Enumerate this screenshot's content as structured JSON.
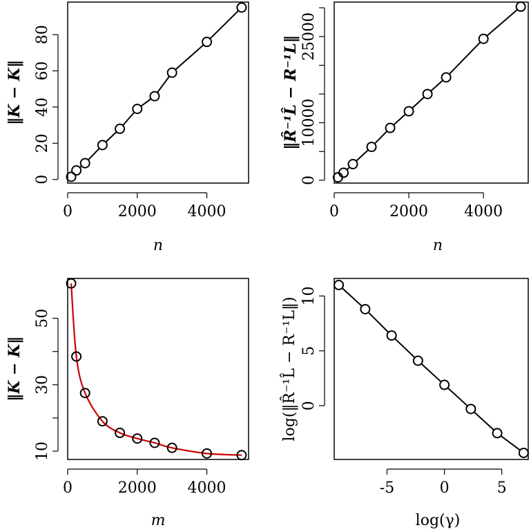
{
  "chart_data": [
    {
      "id": "top-left",
      "type": "line",
      "xlabel": "n",
      "ylabel": "‖K − K‖",
      "x": [
        100,
        250,
        500,
        1000,
        1500,
        2000,
        2500,
        3000,
        4000,
        5000
      ],
      "series": [
        {
          "values": [
            1.5,
            5,
            9,
            19,
            28,
            39,
            46,
            59,
            76,
            95
          ],
          "color": "#000000"
        }
      ],
      "xlim": [
        0,
        5200
      ],
      "ylim": [
        -2,
        98
      ],
      "xticks": [
        0,
        2000,
        4000
      ],
      "xtick_labels": [
        "0",
        "2000",
        "4000"
      ],
      "yticks": [
        0,
        20,
        40,
        60,
        80
      ],
      "ytick_labels": [
        "0",
        "20",
        "40",
        "60",
        "80"
      ],
      "marker": "circle",
      "grid": false
    },
    {
      "id": "top-right",
      "type": "line",
      "xlabel": "n",
      "ylabel": "‖R̂⁻¹L̂ − R⁻¹L‖",
      "x": [
        100,
        250,
        500,
        1000,
        1500,
        2000,
        2500,
        3000,
        4000,
        5000
      ],
      "series": [
        {
          "values": [
            500,
            1300,
            2800,
            5800,
            9100,
            12000,
            15000,
            17900,
            24600,
            30200
          ],
          "color": "#000000"
        }
      ],
      "xlim": [
        0,
        5200
      ],
      "ylim": [
        -500,
        31000
      ],
      "xticks": [
        0,
        2000,
        4000
      ],
      "xtick_labels": [
        "0",
        "2000",
        "4000"
      ],
      "yticks": [
        0,
        10000,
        25000
      ],
      "ytick_labels": [
        "0",
        "10000",
        "25000"
      ],
      "yticks_minor": [
        5000,
        15000,
        20000,
        30000
      ],
      "marker": "circle",
      "grid": false
    },
    {
      "id": "bottom-left",
      "type": "line",
      "xlabel": "m",
      "ylabel": "‖K − K‖",
      "x": [
        100,
        250,
        500,
        1000,
        1500,
        2000,
        2500,
        3000,
        4000,
        5000
      ],
      "series": [
        {
          "values": [
            60.5,
            38.5,
            27.5,
            19,
            15.5,
            13.8,
            12.5,
            11,
            9.3,
            8.8
          ],
          "color": "#000000",
          "marker": "circle"
        }
      ],
      "fit_curve": {
        "color": "#cc0000"
      },
      "xlim": [
        0,
        5200
      ],
      "ylim": [
        7.5,
        62
      ],
      "xticks": [
        0,
        2000,
        4000
      ],
      "xtick_labels": [
        "0",
        "2000",
        "4000"
      ],
      "yticks": [
        10,
        30,
        50
      ],
      "ytick_labels": [
        "10",
        "30",
        "50"
      ],
      "yticks_minor": [
        20,
        40
      ],
      "grid": false
    },
    {
      "id": "bottom-right",
      "type": "line",
      "xlabel": "log(γ)",
      "ylabel": "log(‖R̂⁻¹L̂ − R⁻¹L‖)",
      "x": [
        -9.2,
        -6.9,
        -4.6,
        -2.3,
        0,
        2.3,
        4.6,
        6.9
      ],
      "series": [
        {
          "values": [
            11,
            8.8,
            6.4,
            4.1,
            1.9,
            -0.3,
            -2.5,
            -4.3
          ],
          "color": "#000000"
        }
      ],
      "xlim": [
        -9.6,
        7.3
      ],
      "ylim": [
        -4.9,
        11.6
      ],
      "xticks": [
        -5,
        0,
        5
      ],
      "xtick_labels": [
        "-5",
        "0",
        "5"
      ],
      "yticks": [
        0,
        5,
        10
      ],
      "ytick_labels": [
        "0",
        "5",
        "10"
      ],
      "marker": "circle",
      "grid": false
    }
  ]
}
